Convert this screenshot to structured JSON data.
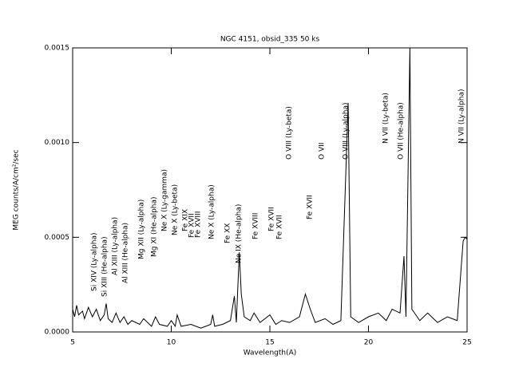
{
  "chart_data": {
    "type": "line",
    "title": "NGC 4151, obsid_335 50 ks",
    "x_label": "Wavelength(A)",
    "y_label": "MEG counts/A/cm²/sec",
    "xlim": [
      5,
      25
    ],
    "ylim": [
      0,
      0.0015
    ],
    "xticks": [
      5,
      10,
      15,
      20,
      25
    ],
    "yticks": [
      {
        "value": 0,
        "label": "0.0000"
      },
      0.0005,
      {
        "value": 0.001,
        "label": "0.0010"
      },
      0.0015
    ],
    "grid": false,
    "series": [
      {
        "name": "MEG",
        "color": "#000000",
        "x": [
          5.0,
          5.1,
          5.2,
          5.3,
          5.5,
          5.6,
          5.8,
          6.0,
          6.2,
          6.4,
          6.6,
          6.7,
          6.8,
          7.0,
          7.2,
          7.4,
          7.6,
          7.8,
          8.0,
          8.4,
          8.6,
          9.0,
          9.2,
          9.4,
          9.8,
          10.0,
          10.2,
          10.3,
          10.5,
          11.0,
          11.5,
          12.0,
          12.1,
          12.2,
          12.6,
          13.0,
          13.2,
          13.3,
          13.45,
          13.55,
          13.7,
          14.0,
          14.2,
          14.5,
          15.0,
          15.3,
          15.6,
          16.0,
          16.5,
          16.8,
          17.05,
          17.3,
          17.8,
          18.2,
          18.6,
          18.97,
          19.1,
          19.5,
          20.0,
          20.5,
          20.9,
          21.2,
          21.6,
          21.8,
          21.9,
          22.1,
          22.2,
          22.6,
          23.0,
          23.5,
          24.0,
          24.5,
          24.8,
          24.9,
          25.0
        ],
        "values": [
          0.00012,
          8e-05,
          0.00014,
          9e-05,
          0.00011,
          7e-05,
          0.00013,
          8e-05,
          0.00012,
          6e-05,
          9e-05,
          0.00015,
          7e-05,
          5e-05,
          0.0001,
          5e-05,
          8e-05,
          4e-05,
          6e-05,
          4e-05,
          7e-05,
          3e-05,
          8e-05,
          4e-05,
          3e-05,
          6e-05,
          3e-05,
          9e-05,
          3e-05,
          4e-05,
          2e-05,
          4e-05,
          9e-05,
          3e-05,
          4e-05,
          6e-05,
          0.00019,
          5e-05,
          0.00042,
          0.0002,
          8e-05,
          6e-05,
          0.0001,
          5e-05,
          9e-05,
          4e-05,
          6e-05,
          5e-05,
          8e-05,
          0.0002,
          0.00012,
          5e-05,
          7e-05,
          4e-05,
          6e-05,
          0.00121,
          8e-05,
          5e-05,
          8e-05,
          0.0001,
          6e-05,
          0.00012,
          0.0001,
          0.0004,
          8e-05,
          0.0015,
          0.00012,
          6e-05,
          0.0001,
          5e-05,
          8e-05,
          6e-05,
          0.00048,
          0.0005,
          0.00049
        ]
      }
    ],
    "annotations": [
      "Si XIV (Ly-alpha)",
      "Si XIII (He-alpha)",
      "Al XIII (Ly-alpha)",
      "Al XIII (He-alpha)",
      "Mg XII (Ly-alpha)",
      "Mg XI (He-alpha)",
      "Ne X (Ly-gamma)",
      "Ne X (Ly-beta)",
      "Fe XIX",
      "Fe XVII",
      "Fe XVIII",
      "Ne X (Ly-alpha)",
      "Fe XX",
      "Ne IX (He-alpha)",
      "Fe XVIII",
      "Fe XVII",
      "Fe XVII",
      "O VIII (Ly-beta)",
      "Fe XVII",
      "O VII",
      "O VIII (Ly-alpha)",
      "N VII (Ly-beta)",
      "O VII (He-alpha)",
      "N VII (Ly-alpha)"
    ]
  }
}
